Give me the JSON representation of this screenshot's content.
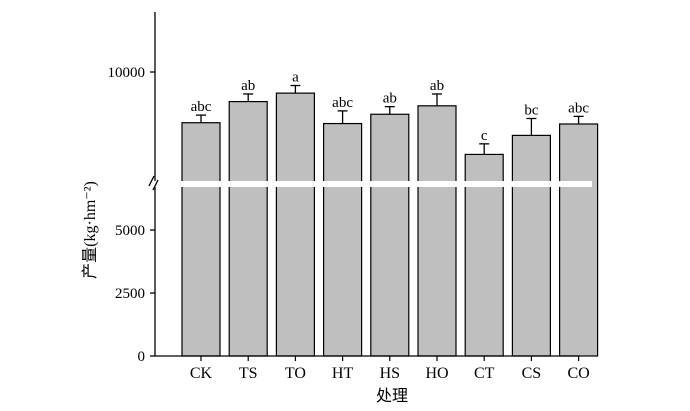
{
  "chart_data": {
    "type": "bar",
    "title": "",
    "xlabel": "处理",
    "ylabel": "产量(kg·hm⁻²)",
    "categories": [
      "CK",
      "TS",
      "TO",
      "HT",
      "HS",
      "HO",
      "CT",
      "CS",
      "CO"
    ],
    "values": [
      8800,
      9300,
      9500,
      8780,
      9000,
      9200,
      8050,
      8500,
      8770
    ],
    "error": [
      180,
      180,
      180,
      300,
      180,
      280,
      250,
      400,
      180
    ],
    "significance": [
      "abc",
      "ab",
      "a",
      "abc",
      "ab",
      "ab",
      "c",
      "bc",
      "abc"
    ],
    "yticks": [
      "0",
      "2500",
      "5000",
      "10000"
    ],
    "y_axis_break": true,
    "lower_segment_ylim": [
      0,
      6800
    ],
    "upper_segment_ylim": [
      7350,
      12000
    ],
    "grid": false,
    "bar_color": "#bfbfbf",
    "edge_color": "#000000"
  }
}
